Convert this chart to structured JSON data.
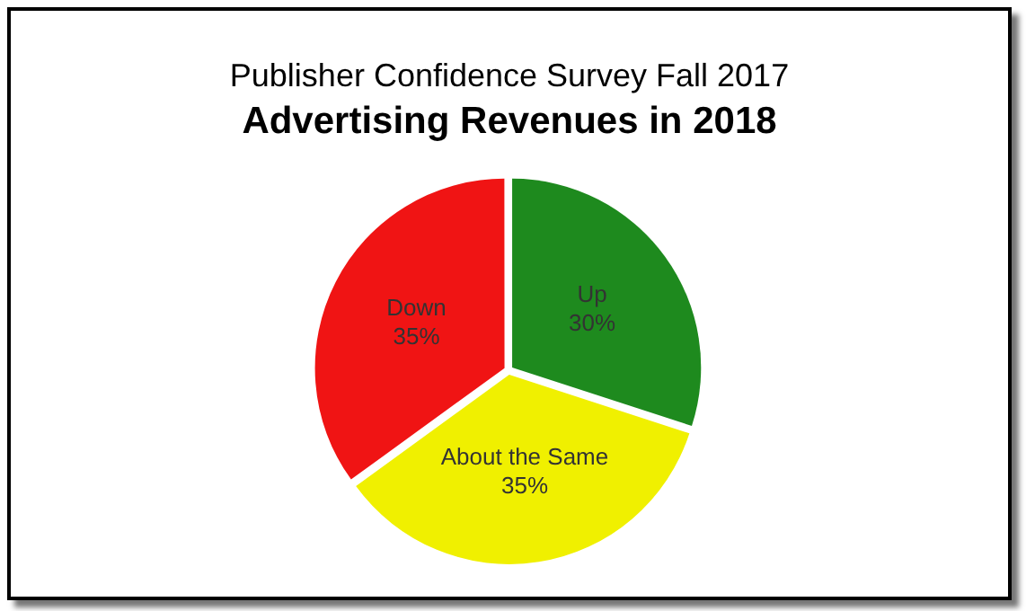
{
  "chart_data": {
    "type": "pie",
    "title": "Advertising Revenues in 2018",
    "subtitle": "Publisher Confidence Survey Fall 2017",
    "categories": [
      "Up",
      "About the Same",
      "Down"
    ],
    "values": [
      30,
      35,
      35
    ],
    "value_labels": [
      "30%",
      "35%",
      "35%"
    ],
    "colors": [
      "#1e8a1e",
      "#f0f000",
      "#f01414"
    ],
    "legend": false
  }
}
